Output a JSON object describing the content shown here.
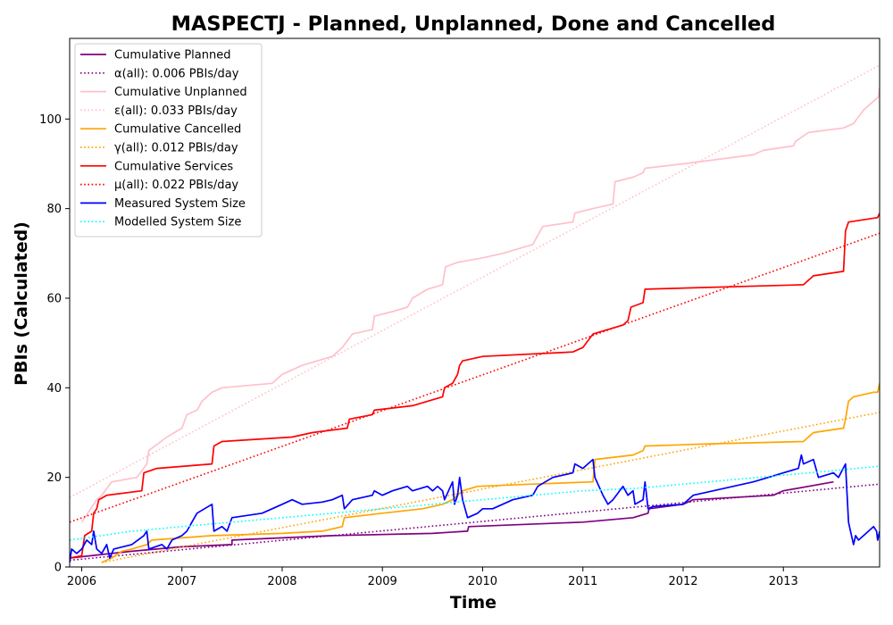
{
  "chart_data": {
    "type": "line",
    "title": "MASPECTJ - Planned, Unplanned, Done  and Cancelled",
    "xlabel": "Time",
    "ylabel": "PBIs (Calculated)",
    "xlim": [
      2005.88,
      2013.96
    ],
    "ylim": [
      0,
      118
    ],
    "x_ticks": [
      2006,
      2007,
      2008,
      2009,
      2010,
      2011,
      2012,
      2013
    ],
    "x_tick_labels": [
      "2006",
      "2007",
      "2008",
      "2009",
      "2010",
      "2011",
      "2012",
      "2013"
    ],
    "y_ticks": [
      0,
      20,
      40,
      60,
      80,
      100
    ],
    "y_tick_labels": [
      "0",
      "20",
      "40",
      "60",
      "80",
      "100"
    ],
    "grid": false,
    "legend_position": "upper-left",
    "series": [
      {
        "name": "Cumulative Planned",
        "style": "solid",
        "color": "#800080",
        "points": [
          [
            2005.88,
            2
          ],
          [
            2006.5,
            3.5
          ],
          [
            2007.0,
            4.5
          ],
          [
            2007.5,
            5
          ],
          [
            2007.5,
            6
          ],
          [
            2008.5,
            7
          ],
          [
            2009.5,
            7.5
          ],
          [
            2009.85,
            8
          ],
          [
            2009.86,
            9
          ],
          [
            2011.0,
            10
          ],
          [
            2011.5,
            11
          ],
          [
            2011.65,
            12
          ],
          [
            2011.66,
            13
          ],
          [
            2012.0,
            14
          ],
          [
            2012.1,
            15
          ],
          [
            2012.9,
            16
          ],
          [
            2013.0,
            17
          ],
          [
            2013.5,
            19
          ]
        ]
      },
      {
        "name": "α(all): 0.006 PBIs/day",
        "style": "dotted",
        "color": "#800080",
        "points": [
          [
            2005.88,
            1.5
          ],
          [
            2013.96,
            18.5
          ]
        ]
      },
      {
        "name": "Cumulative Unplanned",
        "style": "solid",
        "color": "#ffc0cb",
        "points": [
          [
            2006.0,
            10
          ],
          [
            2006.15,
            15
          ],
          [
            2006.2,
            16
          ],
          [
            2006.3,
            19
          ],
          [
            2006.55,
            20
          ],
          [
            2006.65,
            23
          ],
          [
            2006.67,
            26
          ],
          [
            2006.85,
            29
          ],
          [
            2007.0,
            31
          ],
          [
            2007.05,
            34
          ],
          [
            2007.15,
            35
          ],
          [
            2007.2,
            37
          ],
          [
            2007.3,
            39
          ],
          [
            2007.4,
            40
          ],
          [
            2007.9,
            41
          ],
          [
            2008.0,
            43
          ],
          [
            2008.1,
            44
          ],
          [
            2008.2,
            45
          ],
          [
            2008.5,
            47
          ],
          [
            2008.6,
            49
          ],
          [
            2008.7,
            52
          ],
          [
            2008.9,
            53
          ],
          [
            2008.92,
            56
          ],
          [
            2009.1,
            57
          ],
          [
            2009.25,
            58
          ],
          [
            2009.3,
            60
          ],
          [
            2009.45,
            62
          ],
          [
            2009.6,
            63
          ],
          [
            2009.63,
            67
          ],
          [
            2009.75,
            68
          ],
          [
            2010.0,
            69
          ],
          [
            2010.2,
            70
          ],
          [
            2010.5,
            72
          ],
          [
            2010.55,
            74
          ],
          [
            2010.6,
            76
          ],
          [
            2010.9,
            77
          ],
          [
            2010.92,
            79
          ],
          [
            2011.1,
            80
          ],
          [
            2011.3,
            81
          ],
          [
            2011.32,
            86
          ],
          [
            2011.5,
            87
          ],
          [
            2011.6,
            88
          ],
          [
            2011.62,
            89
          ],
          [
            2012.0,
            90
          ],
          [
            2012.7,
            92
          ],
          [
            2012.8,
            93
          ],
          [
            2013.1,
            94
          ],
          [
            2013.12,
            95
          ],
          [
            2013.25,
            97
          ],
          [
            2013.6,
            98
          ],
          [
            2013.7,
            99
          ],
          [
            2013.8,
            102
          ],
          [
            2013.9,
            104
          ],
          [
            2013.95,
            105
          ],
          [
            2013.96,
            107
          ]
        ]
      },
      {
        "name": "ε(all): 0.033 PBIs/day",
        "style": "dotted",
        "color": "#ffc0cb",
        "points": [
          [
            2005.88,
            15.5
          ],
          [
            2013.96,
            112
          ]
        ]
      },
      {
        "name": "Cumulative Cancelled",
        "style": "solid",
        "color": "#ffa500",
        "points": [
          [
            2006.2,
            1
          ],
          [
            2006.3,
            2
          ],
          [
            2006.4,
            3.5
          ],
          [
            2006.5,
            4
          ],
          [
            2006.65,
            5
          ],
          [
            2006.7,
            6
          ],
          [
            2007.0,
            6.5
          ],
          [
            2007.3,
            7
          ],
          [
            2008.0,
            7.5
          ],
          [
            2008.4,
            8
          ],
          [
            2008.6,
            9
          ],
          [
            2008.62,
            11
          ],
          [
            2009.0,
            12
          ],
          [
            2009.4,
            13
          ],
          [
            2009.6,
            14
          ],
          [
            2009.7,
            15
          ],
          [
            2009.8,
            17
          ],
          [
            2009.95,
            18
          ],
          [
            2010.5,
            18.5
          ],
          [
            2011.1,
            19
          ],
          [
            2011.12,
            24
          ],
          [
            2011.5,
            25
          ],
          [
            2011.6,
            26
          ],
          [
            2011.62,
            27
          ],
          [
            2012.3,
            27.5
          ],
          [
            2013.2,
            28
          ],
          [
            2013.3,
            30
          ],
          [
            2013.6,
            31
          ],
          [
            2013.62,
            33
          ],
          [
            2013.65,
            37
          ],
          [
            2013.7,
            38
          ],
          [
            2013.9,
            39
          ],
          [
            2013.94,
            39
          ],
          [
            2013.96,
            41
          ]
        ]
      },
      {
        "name": "γ(all): 0.012 PBIs/day",
        "style": "dotted",
        "color": "#ffa500",
        "points": [
          [
            2006.2,
            1
          ],
          [
            2013.96,
            34.5
          ]
        ]
      },
      {
        "name": "Cumulative Services",
        "style": "solid",
        "color": "#ff0000",
        "points": [
          [
            2005.88,
            2
          ],
          [
            2006.0,
            2.5
          ],
          [
            2006.03,
            7
          ],
          [
            2006.1,
            8
          ],
          [
            2006.12,
            12
          ],
          [
            2006.15,
            13
          ],
          [
            2006.17,
            15
          ],
          [
            2006.25,
            16
          ],
          [
            2006.6,
            17
          ],
          [
            2006.62,
            21
          ],
          [
            2006.75,
            22
          ],
          [
            2007.3,
            23
          ],
          [
            2007.32,
            27
          ],
          [
            2007.4,
            28
          ],
          [
            2008.1,
            29
          ],
          [
            2008.3,
            30
          ],
          [
            2008.65,
            31
          ],
          [
            2008.67,
            33
          ],
          [
            2008.9,
            34
          ],
          [
            2008.92,
            35
          ],
          [
            2009.3,
            36
          ],
          [
            2009.6,
            38
          ],
          [
            2009.62,
            40
          ],
          [
            2009.7,
            41
          ],
          [
            2009.75,
            43
          ],
          [
            2009.77,
            45
          ],
          [
            2009.8,
            46
          ],
          [
            2010.0,
            47
          ],
          [
            2010.9,
            48
          ],
          [
            2011.0,
            49
          ],
          [
            2011.1,
            52
          ],
          [
            2011.4,
            54
          ],
          [
            2011.45,
            55
          ],
          [
            2011.48,
            58
          ],
          [
            2011.6,
            59
          ],
          [
            2011.62,
            62
          ],
          [
            2013.2,
            63
          ],
          [
            2013.3,
            65
          ],
          [
            2013.6,
            66
          ],
          [
            2013.62,
            75
          ],
          [
            2013.65,
            77
          ],
          [
            2013.94,
            78
          ],
          [
            2013.96,
            79
          ]
        ]
      },
      {
        "name": "μ(all): 0.022 PBIs/day",
        "style": "dotted",
        "color": "#ff0000",
        "points": [
          [
            2005.88,
            10
          ],
          [
            2013.96,
            74.5
          ]
        ]
      },
      {
        "name": "Measured System Size",
        "style": "solid",
        "color": "#0000ff",
        "points": [
          [
            2005.88,
            1
          ],
          [
            2005.9,
            4
          ],
          [
            2005.95,
            3
          ],
          [
            2006.0,
            4
          ],
          [
            2006.05,
            6
          ],
          [
            2006.1,
            5
          ],
          [
            2006.12,
            8
          ],
          [
            2006.15,
            4
          ],
          [
            2006.2,
            3
          ],
          [
            2006.25,
            5
          ],
          [
            2006.28,
            2
          ],
          [
            2006.32,
            4
          ],
          [
            2006.5,
            5
          ],
          [
            2006.62,
            7
          ],
          [
            2006.65,
            8
          ],
          [
            2006.67,
            4
          ],
          [
            2006.8,
            5
          ],
          [
            2006.85,
            4
          ],
          [
            2006.9,
            6
          ],
          [
            2007.0,
            7
          ],
          [
            2007.05,
            8
          ],
          [
            2007.1,
            10
          ],
          [
            2007.15,
            12
          ],
          [
            2007.3,
            14
          ],
          [
            2007.32,
            8
          ],
          [
            2007.4,
            9
          ],
          [
            2007.45,
            8
          ],
          [
            2007.5,
            11
          ],
          [
            2007.8,
            12
          ],
          [
            2007.9,
            13
          ],
          [
            2008.0,
            14
          ],
          [
            2008.1,
            15
          ],
          [
            2008.2,
            14
          ],
          [
            2008.4,
            14.5
          ],
          [
            2008.5,
            15
          ],
          [
            2008.6,
            16
          ],
          [
            2008.62,
            13
          ],
          [
            2008.7,
            15
          ],
          [
            2008.9,
            16
          ],
          [
            2008.92,
            17
          ],
          [
            2009.0,
            16
          ],
          [
            2009.1,
            17
          ],
          [
            2009.25,
            18
          ],
          [
            2009.3,
            17
          ],
          [
            2009.45,
            18
          ],
          [
            2009.5,
            17
          ],
          [
            2009.55,
            18
          ],
          [
            2009.6,
            17
          ],
          [
            2009.62,
            15
          ],
          [
            2009.7,
            19
          ],
          [
            2009.72,
            14
          ],
          [
            2009.75,
            16
          ],
          [
            2009.77,
            20
          ],
          [
            2009.8,
            15
          ],
          [
            2009.85,
            11
          ],
          [
            2009.95,
            12
          ],
          [
            2010.0,
            13
          ],
          [
            2010.1,
            13
          ],
          [
            2010.3,
            15
          ],
          [
            2010.5,
            16
          ],
          [
            2010.55,
            18
          ],
          [
            2010.7,
            20
          ],
          [
            2010.9,
            21
          ],
          [
            2010.92,
            23
          ],
          [
            2011.0,
            22
          ],
          [
            2011.05,
            23
          ],
          [
            2011.1,
            24
          ],
          [
            2011.12,
            20
          ],
          [
            2011.2,
            16
          ],
          [
            2011.25,
            14
          ],
          [
            2011.3,
            15
          ],
          [
            2011.4,
            18
          ],
          [
            2011.45,
            16
          ],
          [
            2011.5,
            17
          ],
          [
            2011.52,
            14
          ],
          [
            2011.6,
            15
          ],
          [
            2011.62,
            19
          ],
          [
            2011.65,
            13
          ],
          [
            2011.7,
            13.5
          ],
          [
            2012.0,
            14
          ],
          [
            2012.05,
            15
          ],
          [
            2012.1,
            16
          ],
          [
            2012.3,
            17
          ],
          [
            2012.5,
            18
          ],
          [
            2012.7,
            19
          ],
          [
            2012.85,
            20
          ],
          [
            2013.0,
            21
          ],
          [
            2013.15,
            22
          ],
          [
            2013.18,
            25
          ],
          [
            2013.2,
            23
          ],
          [
            2013.3,
            24
          ],
          [
            2013.35,
            20
          ],
          [
            2013.5,
            21
          ],
          [
            2013.55,
            20
          ],
          [
            2013.62,
            23
          ],
          [
            2013.65,
            10
          ],
          [
            2013.67,
            8
          ],
          [
            2013.7,
            5
          ],
          [
            2013.72,
            7
          ],
          [
            2013.75,
            6
          ],
          [
            2013.8,
            7
          ],
          [
            2013.9,
            9
          ],
          [
            2013.93,
            8
          ],
          [
            2013.94,
            6
          ],
          [
            2013.96,
            8
          ]
        ]
      },
      {
        "name": "Modelled System Size",
        "style": "dotted",
        "color": "#00ffff",
        "points": [
          [
            2005.88,
            6
          ],
          [
            2006.2,
            7
          ],
          [
            2006.5,
            8
          ],
          [
            2007.0,
            9
          ],
          [
            2007.5,
            10
          ],
          [
            2008.0,
            11
          ],
          [
            2008.5,
            12
          ],
          [
            2009.0,
            13
          ],
          [
            2009.5,
            14
          ],
          [
            2010.0,
            15
          ],
          [
            2010.5,
            16
          ],
          [
            2011.0,
            17
          ],
          [
            2011.5,
            17.5
          ],
          [
            2012.0,
            18.5
          ],
          [
            2012.5,
            19.5
          ],
          [
            2013.0,
            20.5
          ],
          [
            2013.5,
            21.5
          ],
          [
            2013.96,
            22.5
          ]
        ]
      }
    ]
  }
}
